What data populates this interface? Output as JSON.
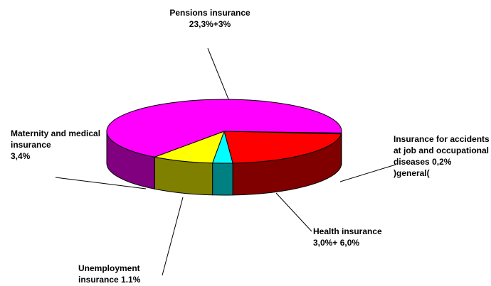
{
  "chart_data": {
    "type": "pie",
    "categories": [
      "Insurance for accidents at job and occupational diseases",
      "Health insurance",
      "Unemployment insurance",
      "Maternity and medical insurance",
      "Pensions insurance"
    ],
    "values": [
      0.2,
      9.0,
      1.1,
      3.4,
      26.3
    ],
    "value_labels": [
      "0,2%",
      "3,0%+ 6,0%",
      "1.1%",
      "3,4%",
      "23,3%+3%"
    ],
    "colors": [
      "#000080",
      "#ff0000",
      "#00ffff",
      "#ffff00",
      "#ff00ff"
    ],
    "annotation": ")general("
  }
}
